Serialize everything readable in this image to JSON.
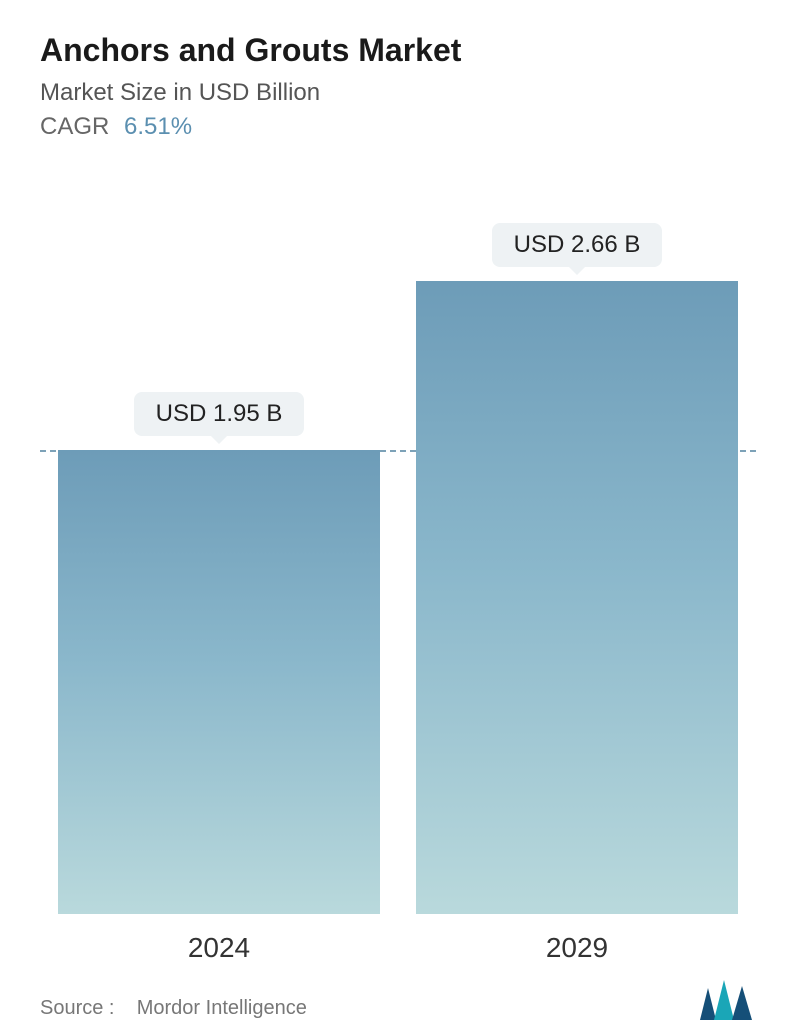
{
  "header": {
    "title": "Anchors and Grouts Market",
    "subtitle": "Market Size in USD Billion",
    "cagr_label": "CAGR",
    "cagr_value": "6.51%"
  },
  "chart": {
    "type": "bar",
    "background_color": "#ffffff",
    "bar_gradient_top": "#6d9cb8",
    "bar_gradient_mid": "#8ab7cb",
    "bar_gradient_bottom": "#b9d9dc",
    "badge_bg": "#eef2f4",
    "badge_text_color": "#222222",
    "dash_color": "#7da2b8",
    "ylim": [
      0,
      3.0
    ],
    "reference_line_value": 1.95,
    "bars": [
      {
        "category": "2024",
        "value": 1.95,
        "label": "USD 1.95 B"
      },
      {
        "category": "2029",
        "value": 2.66,
        "label": "USD 2.66 B"
      }
    ],
    "category_fontsize": 28,
    "badge_fontsize": 24,
    "title_fontsize": 32,
    "subtitle_fontsize": 24
  },
  "footer": {
    "source_label": "Source :",
    "source_name": "Mordor Intelligence",
    "logo_color_primary": "#154f78",
    "logo_color_accent": "#1aa6b7"
  }
}
